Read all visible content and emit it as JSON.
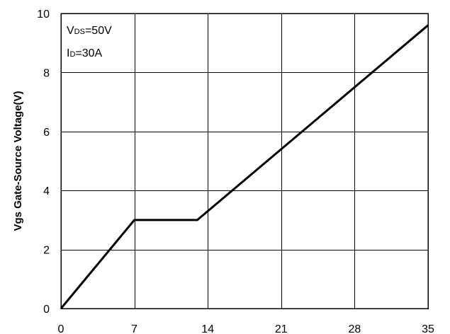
{
  "chart_data": {
    "type": "line",
    "title": "",
    "xlabel": "",
    "ylabel": "Vgs Gate-Source Voltage(V)",
    "xlim": [
      0,
      35
    ],
    "ylim": [
      0,
      10
    ],
    "x_ticks": [
      0,
      7,
      14,
      21,
      28,
      35
    ],
    "y_ticks": [
      0,
      2,
      4,
      6,
      8,
      10
    ],
    "x_tick_labels": [
      "0",
      "7",
      "14",
      "21",
      "28",
      "35"
    ],
    "y_tick_labels": [
      "0",
      "2",
      "4",
      "6",
      "8",
      "10"
    ],
    "grid": true,
    "annotations": [
      {
        "main": "V",
        "sub": "DS",
        "rest": "=50V"
      },
      {
        "main": "I",
        "sub": "D",
        "rest": "=30A"
      }
    ],
    "series": [
      {
        "x": [
          0,
          7,
          13,
          35
        ],
        "y": [
          0,
          3,
          3,
          9.6
        ]
      }
    ]
  },
  "colors": {
    "line": "#000000",
    "grid": "#000000",
    "background": "#ffffff"
  }
}
